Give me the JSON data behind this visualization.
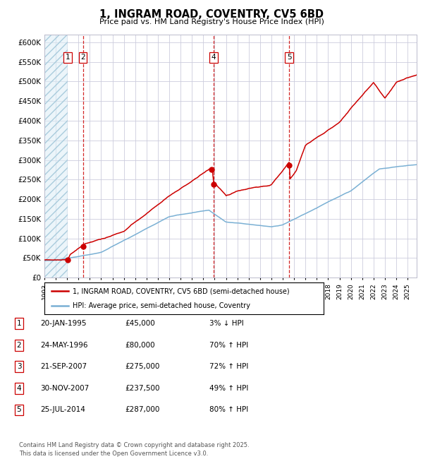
{
  "title": "1, INGRAM ROAD, COVENTRY, CV5 6BD",
  "subtitle": "Price paid vs. HM Land Registry's House Price Index (HPI)",
  "legend_line1": "1, INGRAM ROAD, COVENTRY, CV5 6BD (semi-detached house)",
  "legend_line2": "HPI: Average price, semi-detached house, Coventry",
  "footer": "Contains HM Land Registry data © Crown copyright and database right 2025.\nThis data is licensed under the Open Government Licence v3.0.",
  "transactions": [
    {
      "num": 1,
      "date": "20-JAN-1995",
      "price": 45000,
      "pct": "3%",
      "dir": "↓",
      "year": 1995.05
    },
    {
      "num": 2,
      "date": "24-MAY-1996",
      "price": 80000,
      "pct": "70%",
      "dir": "↑",
      "year": 1996.39
    },
    {
      "num": 3,
      "date": "21-SEP-2007",
      "price": 275000,
      "pct": "72%",
      "dir": "↑",
      "year": 2007.72
    },
    {
      "num": 4,
      "date": "30-NOV-2007",
      "price": 237500,
      "pct": "49%",
      "dir": "↑",
      "year": 2007.92
    },
    {
      "num": 5,
      "date": "25-JUL-2014",
      "price": 287000,
      "pct": "80%",
      "dir": "↑",
      "year": 2014.56
    }
  ],
  "red_color": "#cc0000",
  "blue_color": "#7ab0d4",
  "dashed_line_color": "#cc0000",
  "ylim": [
    0,
    620000
  ],
  "yticks": [
    0,
    50000,
    100000,
    150000,
    200000,
    250000,
    300000,
    350000,
    400000,
    450000,
    500000,
    550000,
    600000
  ],
  "xlim_start": 1993.0,
  "xlim_end": 2025.8,
  "background_color": "#ffffff",
  "plot_bg": "#ffffff",
  "grid_color": "#ccccdd",
  "hatch_span_end": 1995.05
}
